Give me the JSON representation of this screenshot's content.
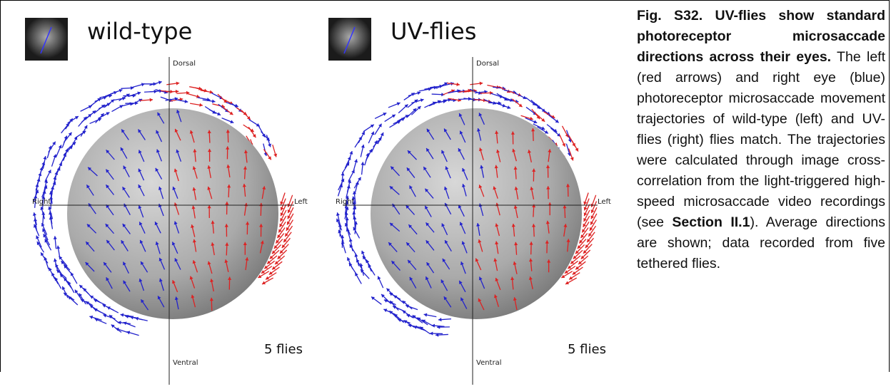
{
  "panels": [
    {
      "title": "wild-type",
      "note": "5 flies"
    },
    {
      "title": "UV-flies",
      "note": "5 flies"
    }
  ],
  "axis_labels": {
    "top": "Dorsal",
    "bottom": "Ventral",
    "left": "Right",
    "right": "Left"
  },
  "caption": {
    "lead": "Fig. S32. UV-flies show standard photoreceptor microsaccade directions across their eyes.",
    "body": " The left (red arrows) and right eye (blue) photoreceptor microsaccade movement trajectories of wild-type (left) and UV-flies (right) flies match. The trajectories were calculated through image cross-correlation from the light-triggered high-speed microsaccade video recordings (see ",
    "section_ref": "Section II.1",
    "tail": "). Average directions are shown; data recorded from five tethered flies."
  }
}
